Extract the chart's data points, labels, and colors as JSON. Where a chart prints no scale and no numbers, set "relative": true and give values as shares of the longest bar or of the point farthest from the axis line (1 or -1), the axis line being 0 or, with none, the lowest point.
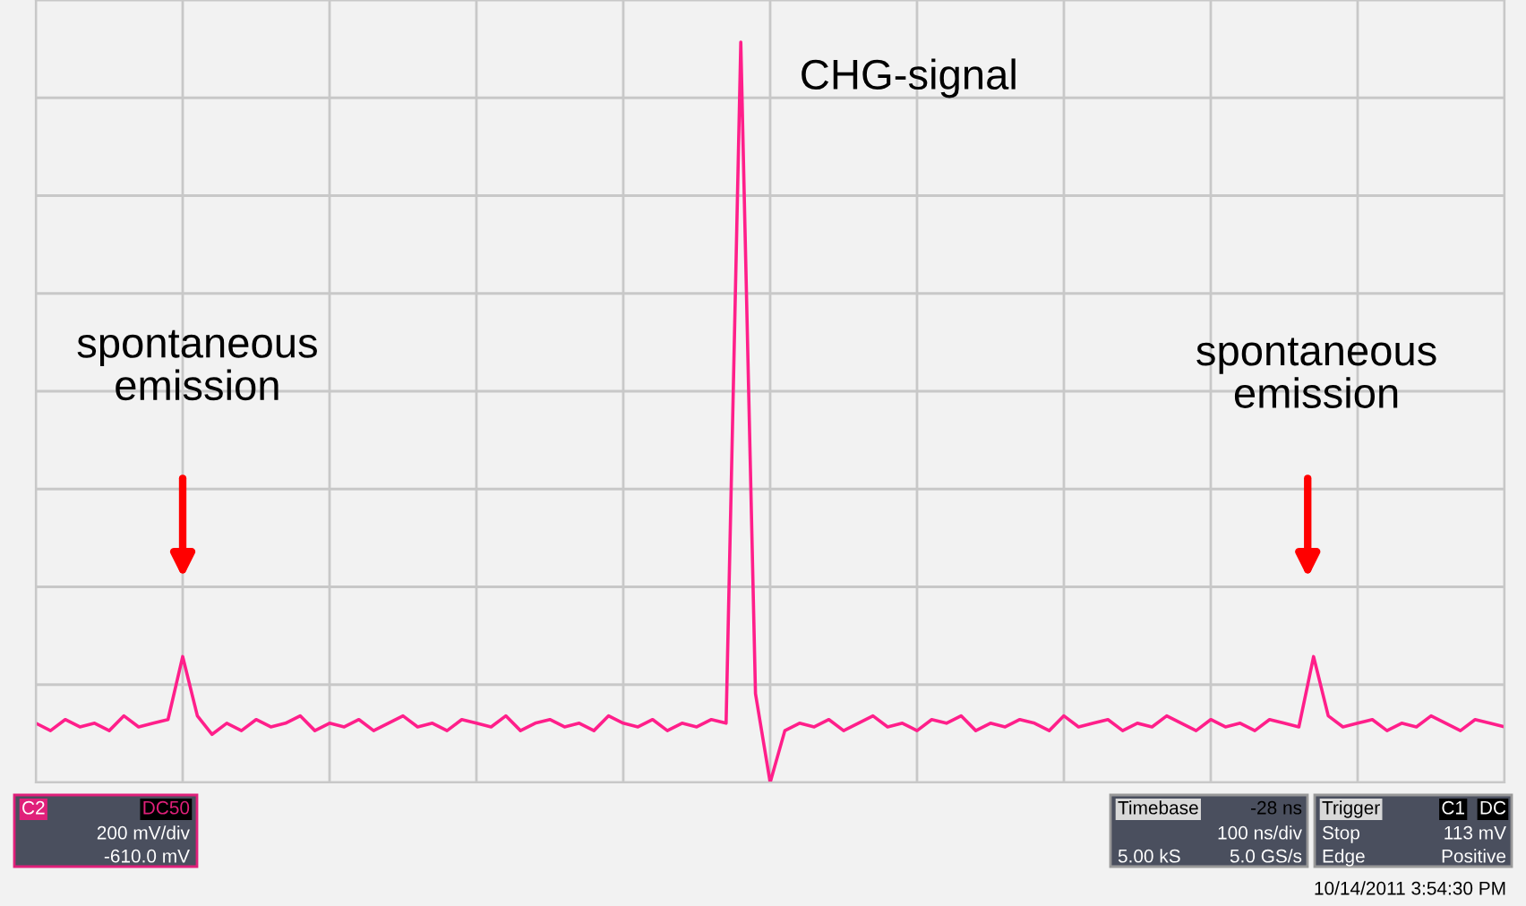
{
  "chart_data": {
    "type": "line",
    "relative": true,
    "grid": true,
    "tick_labels": false,
    "marker": "none",
    "line_style": "solid",
    "categories": [
      null,
      null,
      null,
      null,
      null,
      null,
      null,
      null,
      null,
      null,
      null,
      null,
      null,
      null,
      null,
      null,
      null,
      null,
      null,
      null,
      null,
      null,
      null,
      null,
      null,
      null,
      null,
      null,
      null,
      null,
      null,
      null,
      null,
      null,
      null,
      null,
      null,
      null,
      null,
      null,
      null,
      null,
      null,
      null,
      null,
      null,
      null,
      null,
      null,
      null,
      null,
      null,
      null,
      null,
      null,
      null,
      null,
      null,
      null,
      null,
      null,
      null,
      null,
      null,
      null,
      null,
      null,
      null,
      null,
      null,
      null,
      null,
      null,
      null,
      null,
      null,
      null,
      null,
      null,
      null,
      null,
      null,
      null,
      null,
      null,
      null,
      null,
      null,
      null,
      null,
      null,
      null,
      null,
      null,
      null,
      null,
      null,
      null,
      null,
      null,
      null
    ],
    "series": [
      {
        "color": "#ff1f8a",
        "values": [
          0.08,
          0.07,
          0.085,
          0.075,
          0.08,
          0.07,
          0.09,
          0.075,
          0.08,
          0.085,
          0.17,
          0.09,
          0.065,
          0.08,
          0.07,
          0.085,
          0.075,
          0.08,
          0.09,
          0.07,
          0.08,
          0.075,
          0.085,
          0.07,
          0.08,
          0.09,
          0.075,
          0.08,
          0.07,
          0.085,
          0.08,
          0.075,
          0.09,
          0.07,
          0.08,
          0.085,
          0.075,
          0.08,
          0.07,
          0.09,
          0.08,
          0.075,
          0.085,
          0.07,
          0.08,
          0.075,
          0.085,
          0.08,
          1.0,
          0.12,
          0.0,
          0.07,
          0.08,
          0.075,
          0.085,
          0.07,
          0.08,
          0.09,
          0.075,
          0.08,
          0.07,
          0.085,
          0.08,
          0.09,
          0.07,
          0.08,
          0.075,
          0.085,
          0.08,
          0.07,
          0.09,
          0.075,
          0.08,
          0.085,
          0.07,
          0.08,
          0.075,
          0.09,
          0.08,
          0.07,
          0.085,
          0.075,
          0.08,
          0.07,
          0.085,
          0.08,
          0.075,
          0.17,
          0.09,
          0.075,
          0.08,
          0.085,
          0.07,
          0.08,
          0.075,
          0.09,
          0.08,
          0.07,
          0.085,
          0.08,
          0.075
        ]
      }
    ],
    "annotations": [
      "CHG-signal",
      "spontaneous\nemission",
      "spontaneous\nemission",
      "C2",
      "DC50",
      "200 mV/div",
      "-610.0 mV",
      "Timebase",
      "-28 ns",
      "100 ns/div",
      "5.00 kS",
      "5.0 GS/s",
      "Trigger",
      "C1",
      "DC",
      "Stop",
      "113 mV",
      "Edge",
      "Positive",
      "10/14/2011 3:54:30 PM"
    ]
  }
}
